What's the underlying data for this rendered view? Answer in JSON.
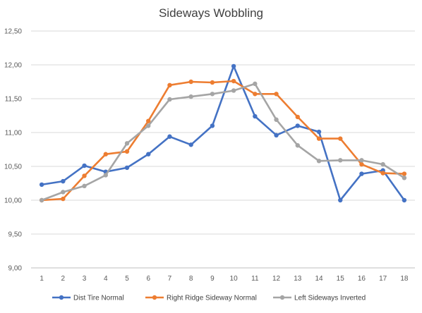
{
  "chart_data": {
    "type": "line",
    "title": "Sideways Wobbling",
    "xlabel": "",
    "ylabel": "",
    "categories": [
      "1",
      "2",
      "3",
      "4",
      "5",
      "6",
      "7",
      "8",
      "9",
      "10",
      "11",
      "12",
      "13",
      "14",
      "15",
      "16",
      "17",
      "18"
    ],
    "ylim": [
      9.0,
      12.5
    ],
    "ytick_step": 0.5,
    "ytick_labels": [
      "9,00",
      "9,50",
      "10,00",
      "10,50",
      "11,00",
      "11,50",
      "12,00",
      "12,50"
    ],
    "grid": true,
    "legend_position": "bottom",
    "series": [
      {
        "name": "Dist Tire Normal",
        "color": "#4472C4",
        "values": [
          10.23,
          10.28,
          10.51,
          10.42,
          10.48,
          10.68,
          10.94,
          10.82,
          11.1,
          11.98,
          11.24,
          10.96,
          11.1,
          11.01,
          10.0,
          10.39,
          10.44,
          10.0
        ]
      },
      {
        "name": "Right Ridge Sideway Normal",
        "color": "#ED7D31",
        "values": [
          10.0,
          10.02,
          10.36,
          10.68,
          10.72,
          11.17,
          11.7,
          11.75,
          11.74,
          11.76,
          11.57,
          11.57,
          11.23,
          10.91,
          10.91,
          10.53,
          10.4,
          10.39
        ]
      },
      {
        "name": "Left Sideways Inverted",
        "color": "#A5A5A5",
        "values": [
          10.0,
          10.12,
          10.21,
          10.37,
          10.84,
          11.1,
          11.49,
          11.53,
          11.57,
          11.62,
          11.72,
          11.19,
          10.81,
          10.58,
          10.59,
          10.59,
          10.53,
          10.33
        ]
      }
    ]
  }
}
